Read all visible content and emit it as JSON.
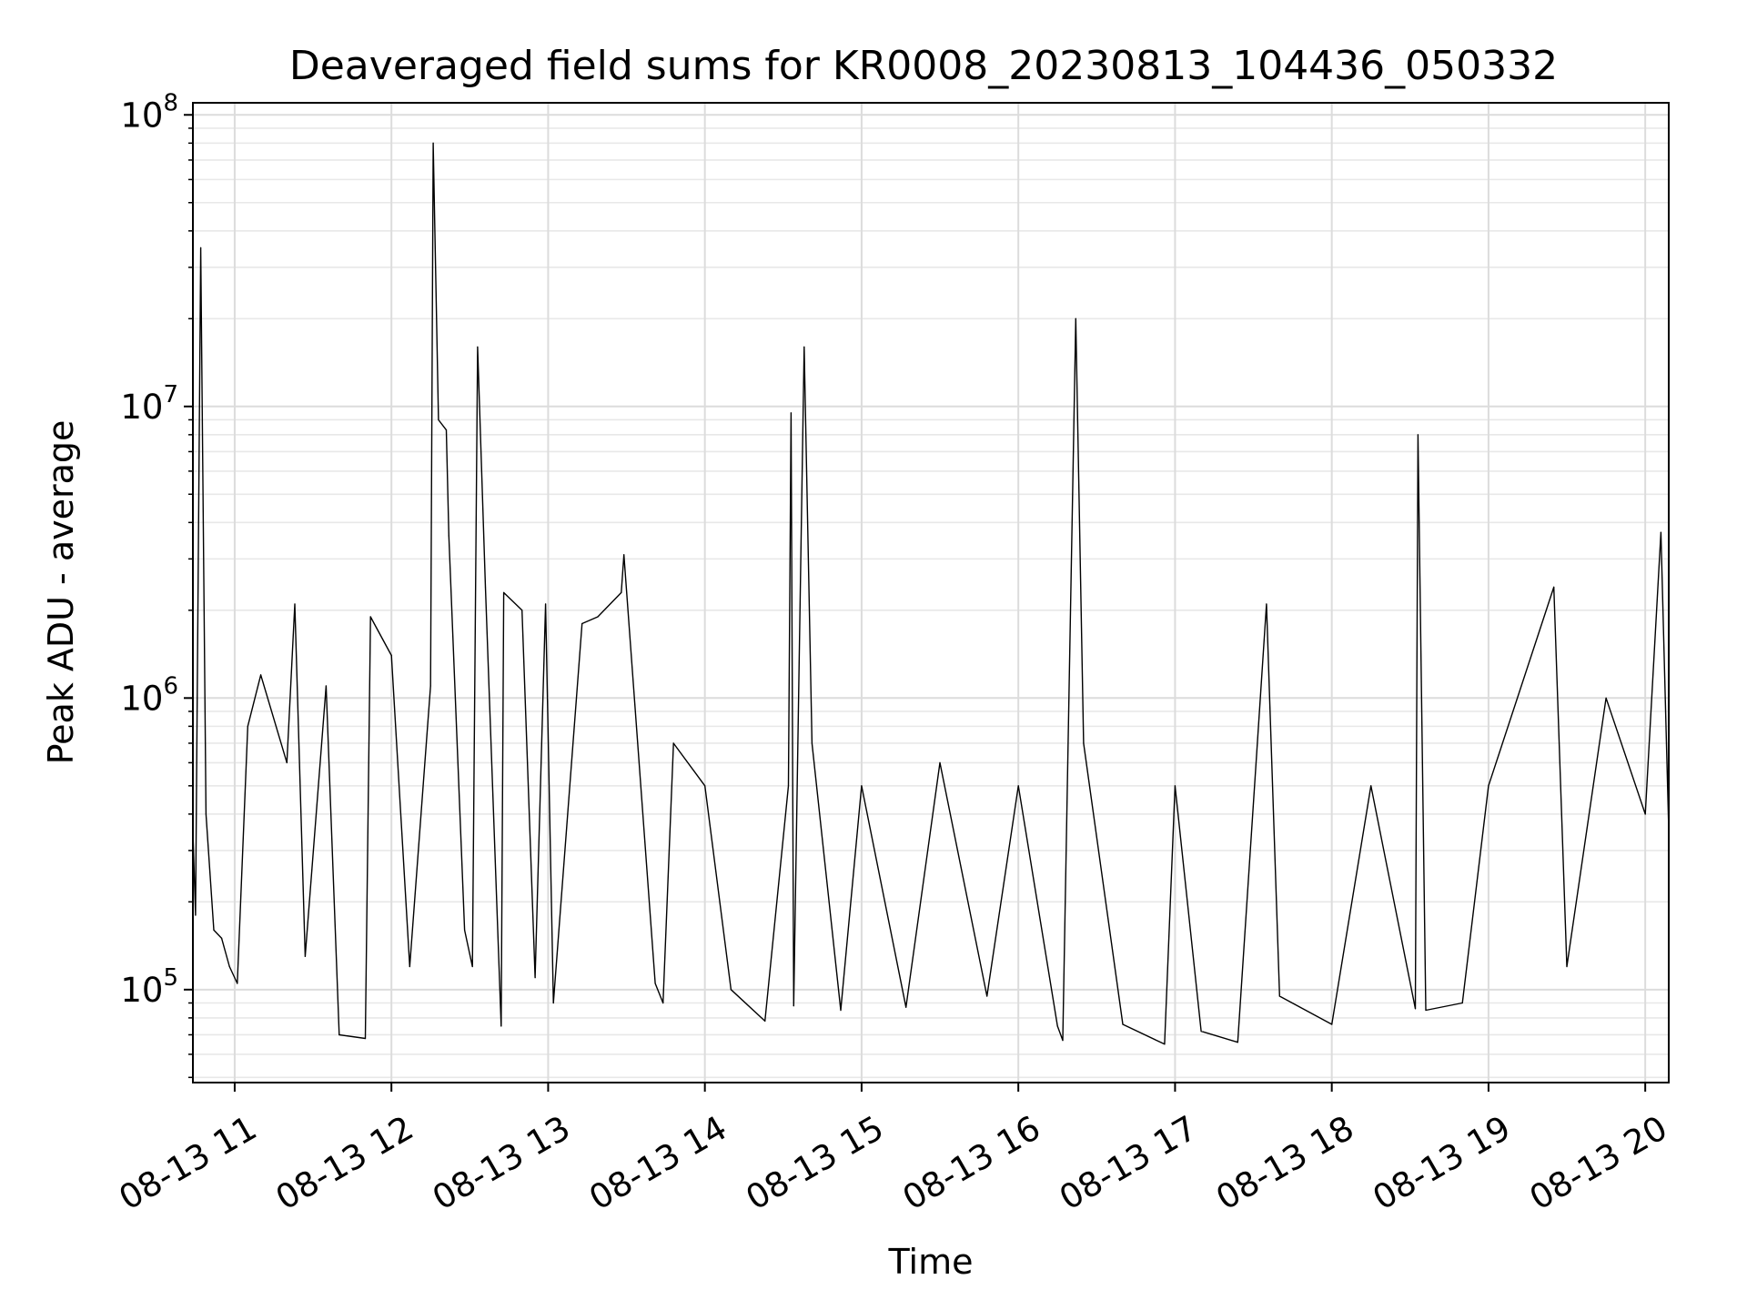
{
  "chart_data": {
    "type": "line",
    "title": "Deaveraged field sums for KR0008_20230813_104436_050332",
    "xlabel": "Time",
    "ylabel": "Peak ADU - average",
    "yscale": "log",
    "ylim": [
      48000,
      110000000
    ],
    "xlim": [
      "2023-08-13 10:44",
      "2023-08-13 20:09"
    ],
    "grid": "major and minor",
    "line_color": "#000000",
    "x_ticks": [
      {
        "t": "2023-08-13 11:00",
        "label": "08-13 11"
      },
      {
        "t": "2023-08-13 12:00",
        "label": "08-13 12"
      },
      {
        "t": "2023-08-13 13:00",
        "label": "08-13 13"
      },
      {
        "t": "2023-08-13 14:00",
        "label": "08-13 14"
      },
      {
        "t": "2023-08-13 15:00",
        "label": "08-13 15"
      },
      {
        "t": "2023-08-13 16:00",
        "label": "08-13 16"
      },
      {
        "t": "2023-08-13 17:00",
        "label": "08-13 17"
      },
      {
        "t": "2023-08-13 18:00",
        "label": "08-13 18"
      },
      {
        "t": "2023-08-13 19:00",
        "label": "08-13 19"
      },
      {
        "t": "2023-08-13 20:00",
        "label": "08-13 20"
      }
    ],
    "y_ticks": [
      {
        "value": 100000,
        "base": "10",
        "exp": "5"
      },
      {
        "value": 1000000,
        "base": "10",
        "exp": "6"
      },
      {
        "value": 10000000,
        "base": "10",
        "exp": "7"
      },
      {
        "value": 100000000,
        "base": "10",
        "exp": "8"
      }
    ],
    "series": [
      {
        "points": [
          [
            "2023-08-13 10:44",
            350000
          ],
          [
            "2023-08-13 10:45",
            180000
          ],
          [
            "2023-08-13 10:47",
            35000000
          ],
          [
            "2023-08-13 10:49",
            400000
          ],
          [
            "2023-08-13 10:52",
            160000
          ],
          [
            "2023-08-13 10:55",
            150000
          ],
          [
            "2023-08-13 10:58",
            120000
          ],
          [
            "2023-08-13 11:01",
            105000
          ],
          [
            "2023-08-13 11:05",
            800000
          ],
          [
            "2023-08-13 11:10",
            1200000
          ],
          [
            "2023-08-13 11:20",
            600000
          ],
          [
            "2023-08-13 11:23",
            2100000
          ],
          [
            "2023-08-13 11:27",
            130000
          ],
          [
            "2023-08-13 11:35",
            1100000
          ],
          [
            "2023-08-13 11:40",
            70000
          ],
          [
            "2023-08-13 11:50",
            68000
          ],
          [
            "2023-08-13 11:52",
            1900000
          ],
          [
            "2023-08-13 12:00",
            1400000
          ],
          [
            "2023-08-13 12:07",
            120000
          ],
          [
            "2023-08-13 12:15",
            1100000
          ],
          [
            "2023-08-13 12:16",
            80000000
          ],
          [
            "2023-08-13 12:18",
            9000000
          ],
          [
            "2023-08-13 12:21",
            8300000
          ],
          [
            "2023-08-13 12:22",
            3600000
          ],
          [
            "2023-08-13 12:28",
            160000
          ],
          [
            "2023-08-13 12:31",
            120000
          ],
          [
            "2023-08-13 12:33",
            16000000
          ],
          [
            "2023-08-13 12:36",
            2400000
          ],
          [
            "2023-08-13 12:42",
            75000
          ],
          [
            "2023-08-13 12:43",
            2300000
          ],
          [
            "2023-08-13 12:50",
            2000000
          ],
          [
            "2023-08-13 12:55",
            110000
          ],
          [
            "2023-08-13 12:59",
            2100000
          ],
          [
            "2023-08-13 13:02",
            90000
          ],
          [
            "2023-08-13 13:13",
            1800000
          ],
          [
            "2023-08-13 13:19",
            1900000
          ],
          [
            "2023-08-13 13:28",
            2300000
          ],
          [
            "2023-08-13 13:29",
            3100000
          ],
          [
            "2023-08-13 13:41",
            105000
          ],
          [
            "2023-08-13 13:44",
            90000
          ],
          [
            "2023-08-13 13:48",
            700000
          ],
          [
            "2023-08-13 14:00",
            500000
          ],
          [
            "2023-08-13 14:10",
            100000
          ],
          [
            "2023-08-13 14:23",
            78000
          ],
          [
            "2023-08-13 14:32",
            500000
          ],
          [
            "2023-08-13 14:33",
            9500000
          ],
          [
            "2023-08-13 14:34",
            88000
          ],
          [
            "2023-08-13 14:38",
            16000000
          ],
          [
            "2023-08-13 14:41",
            700000
          ],
          [
            "2023-08-13 14:52",
            85000
          ],
          [
            "2023-08-13 15:00",
            500000
          ],
          [
            "2023-08-13 15:17",
            87000
          ],
          [
            "2023-08-13 15:30",
            600000
          ],
          [
            "2023-08-13 15:48",
            95000
          ],
          [
            "2023-08-13 16:00",
            500000
          ],
          [
            "2023-08-13 16:15",
            75000
          ],
          [
            "2023-08-13 16:17",
            67000
          ],
          [
            "2023-08-13 16:22",
            20000000
          ],
          [
            "2023-08-13 16:25",
            700000
          ],
          [
            "2023-08-13 16:40",
            76000
          ],
          [
            "2023-08-13 16:56",
            65000
          ],
          [
            "2023-08-13 17:00",
            500000
          ],
          [
            "2023-08-13 17:10",
            72000
          ],
          [
            "2023-08-13 17:24",
            66000
          ],
          [
            "2023-08-13 17:35",
            2100000
          ],
          [
            "2023-08-13 17:40",
            95000
          ],
          [
            "2023-08-13 18:00",
            76000
          ],
          [
            "2023-08-13 18:15",
            500000
          ],
          [
            "2023-08-13 18:32",
            86000
          ],
          [
            "2023-08-13 18:33",
            8000000
          ],
          [
            "2023-08-13 18:36",
            85000
          ],
          [
            "2023-08-13 18:50",
            90000
          ],
          [
            "2023-08-13 19:00",
            500000
          ],
          [
            "2023-08-13 19:25",
            2400000
          ],
          [
            "2023-08-13 19:30",
            120000
          ],
          [
            "2023-08-13 19:45",
            1000000
          ],
          [
            "2023-08-13 20:00",
            400000
          ],
          [
            "2023-08-13 20:06",
            3700000
          ],
          [
            "2023-08-13 20:09",
            350000
          ]
        ]
      }
    ]
  }
}
